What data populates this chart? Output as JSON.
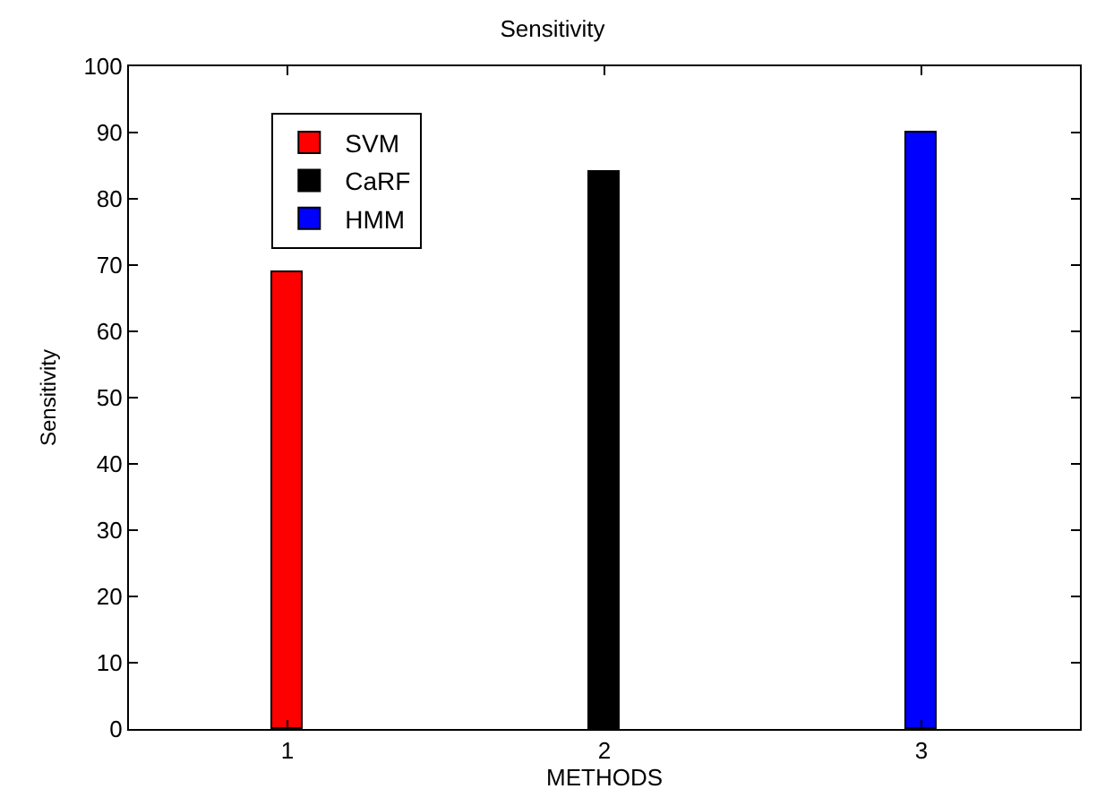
{
  "chart_data": {
    "type": "bar",
    "title": "Sensitivity",
    "xlabel": "METHODS",
    "ylabel": "Sensitivity",
    "series": [
      {
        "name": "SVM",
        "color": "#ff0000",
        "x": [
          1
        ],
        "values": [
          69
        ]
      },
      {
        "name": "CaRF",
        "color": "#000000",
        "x": [
          2
        ],
        "values": [
          84
        ]
      },
      {
        "name": "HMM",
        "color": "#0000ff",
        "x": [
          3
        ],
        "values": [
          90
        ]
      }
    ],
    "xlim": [
      0.5,
      3.5
    ],
    "xticks": [
      1,
      2,
      3
    ],
    "ylim": [
      0,
      100
    ],
    "yticks": [
      0,
      10,
      20,
      30,
      40,
      50,
      60,
      70,
      80,
      90,
      100
    ],
    "legend": "top left"
  }
}
